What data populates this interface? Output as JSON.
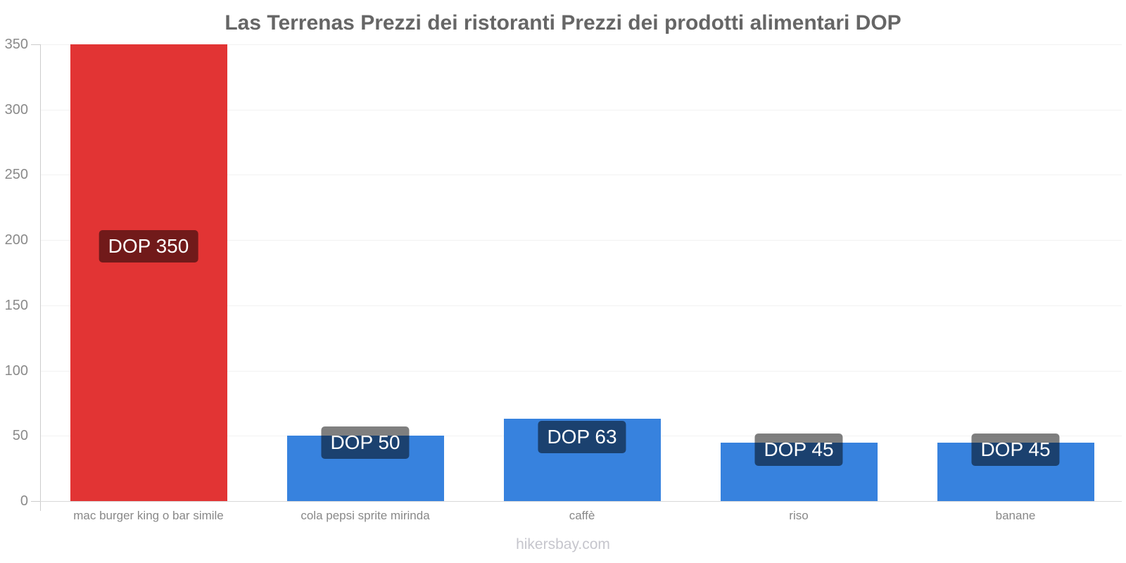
{
  "page": {
    "title": "Las Terrenas Prezzi dei ristoranti Prezzi dei prodotti alimentari DOP",
    "watermark": "hikersbay.com"
  },
  "chart_data": {
    "type": "bar",
    "title": "Las Terrenas Prezzi dei ristoranti Prezzi dei prodotti alimentari DOP",
    "currency": "DOP",
    "categories": [
      "mac burger king o bar simile",
      "cola pepsi sprite mirinda",
      "caffè",
      "riso",
      "banane"
    ],
    "values": [
      350,
      50,
      63,
      45,
      45
    ],
    "data_labels": [
      "DOP 350",
      "DOP 50",
      "DOP 63",
      "DOP 45",
      "DOP 45"
    ],
    "bar_colors": [
      "#e23434",
      "#3782de",
      "#3782de",
      "#3782de",
      "#3782de"
    ],
    "ylim": [
      0,
      350
    ],
    "yticks": [
      0,
      50,
      100,
      150,
      200,
      250,
      300,
      350
    ],
    "grid": true,
    "legend": false,
    "xlabel": "",
    "ylabel": ""
  },
  "colors": {
    "red_bar": "#e23434",
    "blue_bar": "#3782de",
    "label_bg": "rgba(0,0,0,0.5)",
    "title_text": "#666666",
    "axis_text": "#8a8a8a",
    "category_text": "#888888",
    "gridline": "#f2f2f2",
    "axis_line": "#cccccc",
    "baseline": "#d8d8d8",
    "watermark_text": "#c6c6cd"
  }
}
